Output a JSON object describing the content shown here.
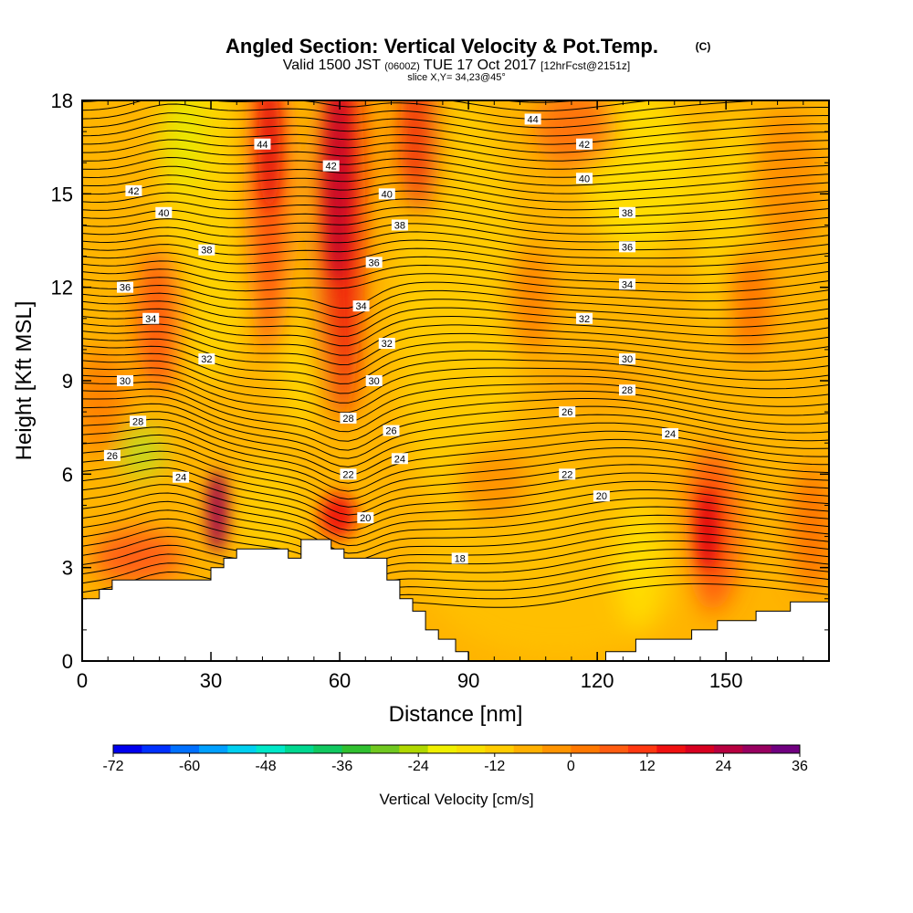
{
  "title": "Angled Section: Vertical Velocity & Pot.Temp.",
  "title_unit": "(C)",
  "valid_prefix": "Valid 1500 JST",
  "valid_z": "(0600Z)",
  "valid_date": "TUE 17 Oct 2017",
  "forecast": "[12hrFcst@2151z]",
  "slice": "slice X,Y= 34,23@45°",
  "chart_data": {
    "type": "heatmap",
    "xlabel": "Distance [nm]",
    "ylabel": "Height [Kft MSL]",
    "xlim": [
      0,
      174
    ],
    "ylim": [
      0,
      18
    ],
    "xticks": [
      0,
      30,
      60,
      90,
      120,
      150
    ],
    "yticks": [
      0,
      3,
      6,
      9,
      12,
      15,
      18
    ],
    "colorbar": {
      "label": "Vertical Velocity [cm/s]",
      "range": [
        -72,
        36
      ],
      "ticks": [
        -72,
        -60,
        -48,
        -36,
        -24,
        -12,
        0,
        12,
        24,
        36
      ],
      "colors": [
        "#0000ee",
        "#0030ff",
        "#0070ff",
        "#00a0ff",
        "#00d0f0",
        "#00e8c8",
        "#00d890",
        "#10c860",
        "#30c030",
        "#70c820",
        "#b0d800",
        "#f0f000",
        "#f8e000",
        "#ffcc00",
        "#ffb000",
        "#ff9400",
        "#ff7800",
        "#ff5c10",
        "#ff3810",
        "#f01010",
        "#d80020",
        "#b80040",
        "#980060",
        "#700080"
      ]
    },
    "terrain": [
      [
        0,
        2
      ],
      [
        4,
        2
      ],
      [
        4,
        2.3
      ],
      [
        7,
        2.3
      ],
      [
        7,
        2.6
      ],
      [
        30,
        2.6
      ],
      [
        30,
        3
      ],
      [
        33,
        3
      ],
      [
        33,
        3.3
      ],
      [
        36,
        3.3
      ],
      [
        36,
        3.6
      ],
      [
        48,
        3.6
      ],
      [
        48,
        3.3
      ],
      [
        51,
        3.3
      ],
      [
        51,
        3.9
      ],
      [
        58,
        3.9
      ],
      [
        58,
        3.6
      ],
      [
        61,
        3.6
      ],
      [
        61,
        3.3
      ],
      [
        71,
        3.3
      ],
      [
        71,
        2.6
      ],
      [
        74,
        2.6
      ],
      [
        74,
        2
      ],
      [
        77,
        2
      ],
      [
        77,
        1.6
      ],
      [
        80,
        1.6
      ],
      [
        80,
        1
      ],
      [
        83,
        1
      ],
      [
        83,
        0.7
      ],
      [
        87,
        0.7
      ],
      [
        87,
        0.3
      ],
      [
        90,
        0.3
      ],
      [
        90,
        0
      ],
      [
        122,
        0
      ],
      [
        122,
        0.3
      ],
      [
        129,
        0.3
      ],
      [
        129,
        0.7
      ],
      [
        142,
        0.7
      ],
      [
        142,
        1
      ],
      [
        148,
        1
      ],
      [
        148,
        1.3
      ],
      [
        157,
        1.3
      ],
      [
        157,
        1.6
      ],
      [
        165,
        1.6
      ],
      [
        165,
        1.9
      ],
      [
        174,
        1.9
      ],
      [
        174,
        0
      ],
      [
        0,
        0
      ]
    ],
    "theta_labels": [
      {
        "x": 42,
        "y": 16.6,
        "v": "44"
      },
      {
        "x": 105,
        "y": 17.4,
        "v": "44"
      },
      {
        "x": 58,
        "y": 15.9,
        "v": "42"
      },
      {
        "x": 12,
        "y": 15.1,
        "v": "42"
      },
      {
        "x": 117,
        "y": 16.6,
        "v": "42"
      },
      {
        "x": 71,
        "y": 15.0,
        "v": "40"
      },
      {
        "x": 19,
        "y": 14.4,
        "v": "40"
      },
      {
        "x": 117,
        "y": 15.5,
        "v": "40"
      },
      {
        "x": 74,
        "y": 14.0,
        "v": "38"
      },
      {
        "x": 29,
        "y": 13.2,
        "v": "38"
      },
      {
        "x": 127,
        "y": 14.4,
        "v": "38"
      },
      {
        "x": 68,
        "y": 12.8,
        "v": "36"
      },
      {
        "x": 10,
        "y": 12.0,
        "v": "36"
      },
      {
        "x": 127,
        "y": 13.3,
        "v": "36"
      },
      {
        "x": 65,
        "y": 11.4,
        "v": "34"
      },
      {
        "x": 16,
        "y": 11.0,
        "v": "34"
      },
      {
        "x": 127,
        "y": 12.1,
        "v": "34"
      },
      {
        "x": 71,
        "y": 10.2,
        "v": "32"
      },
      {
        "x": 29,
        "y": 9.7,
        "v": "32"
      },
      {
        "x": 117,
        "y": 11.0,
        "v": "32"
      },
      {
        "x": 68,
        "y": 9.0,
        "v": "30"
      },
      {
        "x": 10,
        "y": 9.0,
        "v": "30"
      },
      {
        "x": 127,
        "y": 9.7,
        "v": "30"
      },
      {
        "x": 62,
        "y": 7.8,
        "v": "28"
      },
      {
        "x": 13,
        "y": 7.7,
        "v": "28"
      },
      {
        "x": 127,
        "y": 8.7,
        "v": "28"
      },
      {
        "x": 72,
        "y": 7.4,
        "v": "26"
      },
      {
        "x": 7,
        "y": 6.6,
        "v": "26"
      },
      {
        "x": 113,
        "y": 8.0,
        "v": "26"
      },
      {
        "x": 74,
        "y": 6.5,
        "v": "24"
      },
      {
        "x": 23,
        "y": 5.9,
        "v": "24"
      },
      {
        "x": 137,
        "y": 7.3,
        "v": "24"
      },
      {
        "x": 62,
        "y": 6.0,
        "v": "22"
      },
      {
        "x": 113,
        "y": 6.0,
        "v": "22"
      },
      {
        "x": 66,
        "y": 4.6,
        "v": "20"
      },
      {
        "x": 121,
        "y": 5.3,
        "v": "20"
      },
      {
        "x": 88,
        "y": 3.3,
        "v": "18"
      }
    ]
  }
}
